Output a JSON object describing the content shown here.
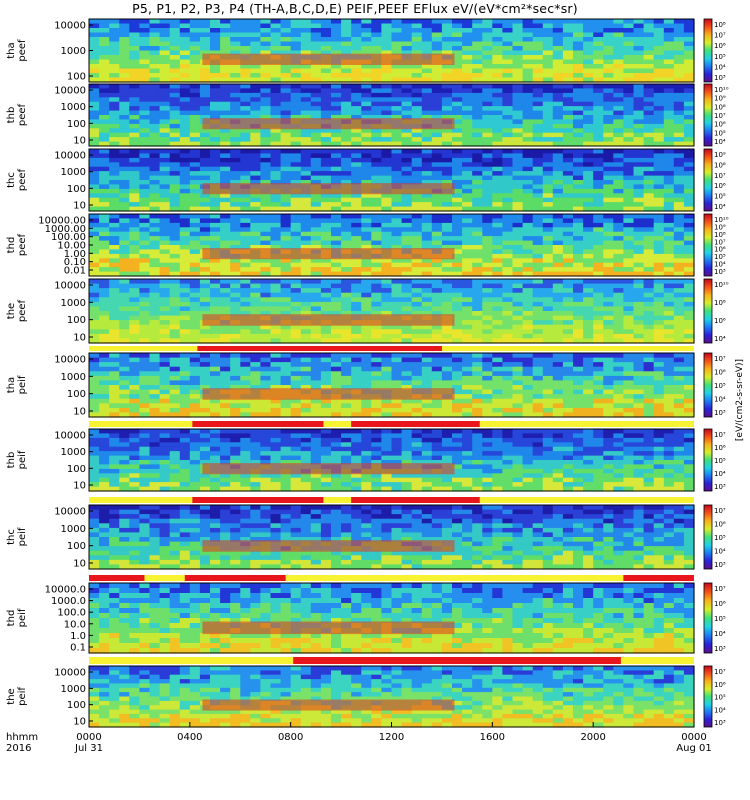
{
  "chart_data": {
    "type": "heatmap",
    "title": "P5, P1, P2, P3, P4 (TH-A,B,C,D,E) PEIF,PEEF EFlux eV/(eV*cm²*sec*sr)",
    "colorbar_label": "[eV/(cm2-s-sr-eV)]",
    "x_axis": {
      "row_label": "hhmm",
      "year_label": "2016",
      "ticks": [
        "0000",
        "0400",
        "0800",
        "1200",
        "1600",
        "2000",
        "0000"
      ],
      "tick_hours": [
        0,
        4,
        8,
        12,
        16,
        20,
        24
      ],
      "date_labels": [
        {
          "hour": 0,
          "text": "Jul 31"
        },
        {
          "hour": 24,
          "text": "Aug 01"
        }
      ],
      "range_hours": [
        0,
        24
      ]
    },
    "panels": [
      {
        "id": "thd_peef_a",
        "ylabel": [
          "tha",
          "peef"
        ],
        "yticks": [
          "10000",
          "1000",
          "100"
        ],
        "cbar_ticks": [
          "10⁸",
          "10⁷",
          "10⁶",
          "10⁵",
          "10⁴",
          "10³"
        ]
      },
      {
        "id": "thb_peef",
        "ylabel": [
          "thb",
          "peef"
        ],
        "yticks": [
          "10000",
          "1000",
          "100",
          "10"
        ],
        "cbar_ticks": [
          "10¹⁰",
          "10⁹",
          "10⁸",
          "10⁷",
          "10⁶",
          "10⁵",
          "10⁴"
        ]
      },
      {
        "id": "thc_peef",
        "ylabel": [
          "thc",
          "peef"
        ],
        "yticks": [
          "10000",
          "1000",
          "100",
          "10"
        ],
        "cbar_ticks": [
          "10⁹",
          "10⁸",
          "10⁷",
          "10⁶",
          "10⁵",
          "10⁴"
        ]
      },
      {
        "id": "thd_peef",
        "ylabel": [
          "thd",
          "peef"
        ],
        "yticks": [
          "10000.00",
          "1000.00",
          "100.00",
          "10.00",
          "1.00",
          "0.10",
          "0.01"
        ],
        "cbar_ticks": [
          "10¹⁰",
          "10⁹",
          "10⁸",
          "10⁷",
          "10⁶",
          "10⁵",
          "10⁴",
          "10³"
        ]
      },
      {
        "id": "the_peef",
        "ylabel": [
          "the",
          "peef"
        ],
        "yticks": [
          "10000",
          "1000",
          "100",
          "10"
        ],
        "cbar_ticks": [
          "10¹⁰",
          "10⁸",
          "10⁶",
          "10⁴"
        ]
      },
      {
        "id": "tha_peif",
        "ylabel": [
          "tha",
          "peif"
        ],
        "yticks": [
          "10000",
          "1000",
          "100",
          "10"
        ],
        "cbar_ticks": [
          "10⁷",
          "10⁶",
          "10⁵",
          "10⁴",
          "10³"
        ]
      },
      {
        "id": "thb_peif",
        "ylabel": [
          "thb",
          "peif"
        ],
        "yticks": [
          "10000",
          "1000",
          "100",
          "10"
        ],
        "cbar_ticks": [
          "10⁷",
          "10⁶",
          "10⁵",
          "10⁴",
          "10³"
        ]
      },
      {
        "id": "thc_peif",
        "ylabel": [
          "thc",
          "peif"
        ],
        "yticks": [
          "10000",
          "1000",
          "100",
          "10"
        ],
        "cbar_ticks": [
          "10⁷",
          "10⁶",
          "10⁵",
          "10⁴",
          "10³"
        ]
      },
      {
        "id": "thd_peif",
        "ylabel": [
          "thd",
          "peif"
        ],
        "yticks": [
          "10000.0",
          "1000.0",
          "100.0",
          "10.0",
          "1.0",
          "0.1"
        ],
        "cbar_ticks": [
          "10⁷",
          "10⁶",
          "10⁵",
          "10⁴",
          "10³"
        ]
      },
      {
        "id": "the_peif",
        "ylabel": [
          "the",
          "peif"
        ],
        "yticks": [
          "10000",
          "1000",
          "100",
          "10"
        ],
        "cbar_ticks": [
          "10⁷",
          "10⁶",
          "10⁵",
          "10⁴",
          "10³"
        ]
      }
    ],
    "mode_bars": [
      {
        "after_panel": 4,
        "red_hours": [
          [
            4.3,
            14.0
          ]
        ]
      },
      {
        "after_panel": 5,
        "red_hours": [
          [
            4.1,
            9.3
          ],
          [
            10.4,
            15.5
          ]
        ]
      },
      {
        "after_panel": 6,
        "red_hours": [
          [
            4.1,
            9.3
          ],
          [
            10.4,
            15.5
          ]
        ]
      },
      {
        "after_panel": 7,
        "red_hours": [
          [
            0,
            2.2
          ],
          [
            3.8,
            7.8
          ],
          [
            21.2,
            24
          ]
        ]
      },
      {
        "after_panel": 8,
        "red_hours": [
          [
            8.1,
            21.1
          ]
        ]
      }
    ],
    "colors": {
      "mode_red": "#e8151b",
      "mode_yellow": "#f7f232",
      "data_gap": "#ffffff"
    }
  }
}
